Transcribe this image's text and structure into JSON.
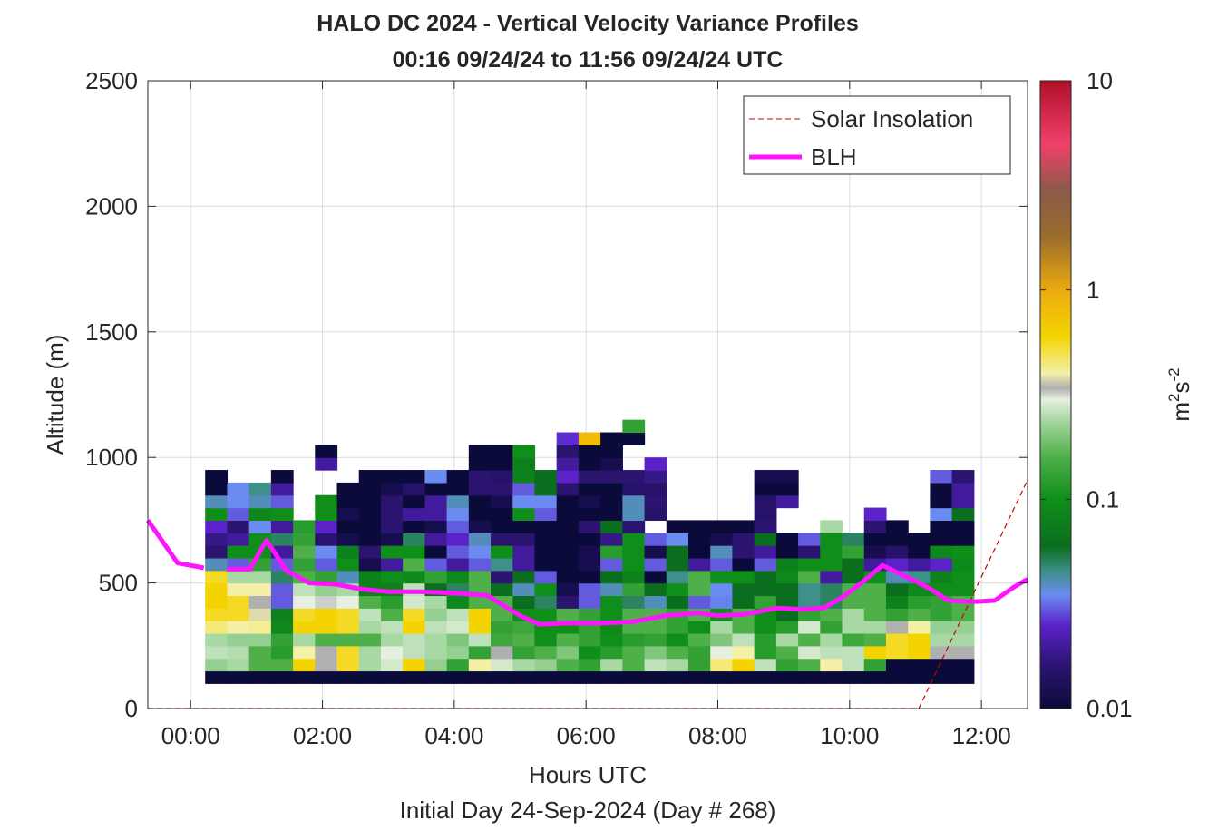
{
  "page": {
    "title_line1": "HALO DC 2024 - Vertical Velocity Variance Profiles",
    "title_line2": "00:16 09/24/24 to 11:56 09/24/24  UTC",
    "footer": "Initial Day 24-Sep-2024 (Day # 268)"
  },
  "chart_data": {
    "type": "heatmap",
    "title": "HALO DC 2024 - Vertical Velocity Variance Profiles",
    "subtitle": "00:16 09/24/24 to 11:56 09/24/24  UTC",
    "xlabel": "Hours UTC",
    "ylabel": "Altitude (m)",
    "footer": "Initial Day 24-Sep-2024 (Day # 268)",
    "xlim": [
      -0.65,
      12.7
    ],
    "ylim": [
      0,
      2500
    ],
    "x_ticks": [
      0,
      2,
      4,
      6,
      8,
      10,
      12
    ],
    "x_tick_labels": [
      "00:00",
      "02:00",
      "04:00",
      "06:00",
      "08:00",
      "10:00",
      "12:00"
    ],
    "y_ticks": [
      0,
      500,
      1000,
      1500,
      2000,
      2500
    ],
    "y_tick_labels": [
      "0",
      "500",
      "1000",
      "1500",
      "2000",
      "2500"
    ],
    "grid": true,
    "legend_placement": "top-right",
    "legend": [
      "Solar Insolation",
      "BLH"
    ],
    "colorbar": {
      "label_base": "m",
      "label_sup1": "2",
      "label_mid": "s",
      "label_sup2": "-2",
      "scale": "log",
      "range": [
        0.01,
        10
      ],
      "tick_values": [
        0.01,
        0.1,
        1,
        10
      ],
      "tick_labels": [
        "0.01",
        "0.1",
        "1",
        "10"
      ],
      "colormap": [
        {
          "v": 0.01,
          "c": "#0b0b3b"
        },
        {
          "v": 0.016,
          "c": "#2a1470"
        },
        {
          "v": 0.025,
          "c": "#5a22c8"
        },
        {
          "v": 0.035,
          "c": "#6a8cf0"
        },
        {
          "v": 0.045,
          "c": "#3f8f8a"
        },
        {
          "v": 0.06,
          "c": "#0a6e1e"
        },
        {
          "v": 0.1,
          "c": "#0f8f1a"
        },
        {
          "v": 0.16,
          "c": "#4fb04a"
        },
        {
          "v": 0.24,
          "c": "#a8d8a4"
        },
        {
          "v": 0.3,
          "c": "#e6efe0"
        },
        {
          "v": 0.34,
          "c": "#b0b0b0"
        },
        {
          "v": 0.4,
          "c": "#f4f0a8"
        },
        {
          "v": 0.6,
          "c": "#f4d400"
        },
        {
          "v": 1.0,
          "c": "#ecaa10"
        },
        {
          "v": 1.8,
          "c": "#9a6c2c"
        },
        {
          "v": 3.0,
          "c": "#8c5a4a"
        },
        {
          "v": 5.0,
          "c": "#f0406a"
        },
        {
          "v": 10.0,
          "c": "#b0102a"
        }
      ]
    },
    "blh_color": "#ff14ff",
    "solar_color": "#cc0000",
    "blh": {
      "name": "BLH",
      "x": [
        -0.65,
        -0.2,
        0.2,
        0.55,
        0.9,
        1.15,
        1.45,
        1.8,
        2.2,
        2.6,
        3.0,
        3.5,
        4.0,
        4.5,
        5.0,
        5.3,
        5.7,
        6.2,
        6.7,
        7.2,
        7.7,
        8.0,
        8.4,
        8.9,
        9.3,
        9.6,
        9.9,
        10.2,
        10.5,
        10.9,
        11.2,
        11.5,
        11.85,
        12.2,
        12.5,
        12.7
      ],
      "y": [
        750,
        580,
        560,
        555,
        555,
        670,
        550,
        500,
        495,
        475,
        465,
        465,
        460,
        450,
        370,
        335,
        340,
        340,
        345,
        370,
        380,
        370,
        375,
        400,
        395,
        400,
        445,
        505,
        570,
        520,
        480,
        430,
        425,
        430,
        485,
        515
      ],
      "gap_after_index": 2
    },
    "solar": {
      "name": "Solar Insolation",
      "x": [
        -0.65,
        11.05,
        12.7
      ],
      "y": [
        0,
        0,
        910
      ]
    },
    "heatmap_cells": {
      "x_start": 0.22,
      "x_step": 0.3333,
      "y_start": 100,
      "y_step": 50,
      "ncols": 35,
      "rows": [
        [
          0.01,
          0.01,
          0.01,
          0.01,
          0.01,
          0.01,
          0.01,
          0.01,
          0.01,
          0.01,
          0.01,
          0.01,
          0.01,
          0.01,
          0.01,
          0.01,
          0.01,
          0.01,
          0.01,
          0.01,
          0.01,
          0.01,
          0.01,
          0.01,
          0.01,
          0.01,
          0.01,
          0.01,
          0.01,
          0.01,
          0.01,
          0.01,
          0.01,
          0.01,
          0.01
        ],
        [
          0.22,
          0.24,
          0.16,
          0.16,
          0.6,
          0.34,
          0.55,
          0.24,
          0.28,
          0.6,
          0.22,
          0.13,
          0.4,
          0.28,
          0.24,
          0.22,
          0.16,
          0.13,
          0.24,
          0.16,
          0.26,
          0.24,
          0.13,
          0.45,
          0.6,
          0.26,
          0.13,
          0.16,
          0.4,
          0.26,
          0.13,
          0.01,
          0.01,
          0.01,
          0.01
        ],
        [
          0.26,
          0.25,
          0.16,
          0.12,
          0.4,
          0.34,
          0.55,
          0.24,
          0.3,
          0.26,
          0.24,
          0.22,
          0.13,
          0.34,
          0.13,
          0.16,
          0.2,
          0.1,
          0.12,
          0.16,
          0.2,
          0.16,
          0.13,
          0.3,
          0.4,
          0.12,
          0.16,
          0.28,
          0.26,
          0.26,
          0.6,
          0.55,
          0.6,
          0.34,
          0.34
        ],
        [
          0.24,
          0.22,
          0.22,
          0.13,
          0.24,
          0.16,
          0.16,
          0.16,
          0.24,
          0.26,
          0.24,
          0.2,
          0.26,
          0.14,
          0.16,
          0.1,
          0.16,
          0.13,
          0.1,
          0.12,
          0.13,
          0.1,
          0.16,
          0.2,
          0.26,
          0.12,
          0.24,
          0.16,
          0.24,
          0.14,
          0.16,
          0.55,
          0.6,
          0.24,
          0.24
        ],
        [
          0.45,
          0.4,
          0.42,
          0.09,
          0.6,
          0.6,
          0.55,
          0.24,
          0.26,
          0.6,
          0.26,
          0.28,
          0.6,
          0.13,
          0.14,
          0.1,
          0.1,
          0.13,
          0.09,
          0.16,
          0.16,
          0.13,
          0.1,
          0.24,
          0.16,
          0.1,
          0.12,
          0.28,
          0.13,
          0.24,
          0.24,
          0.34,
          0.4,
          0.22,
          0.22
        ],
        [
          0.55,
          0.55,
          0.38,
          0.08,
          0.55,
          0.6,
          0.55,
          0.26,
          0.16,
          0.55,
          0.22,
          0.26,
          0.6,
          0.16,
          0.1,
          0.1,
          0.16,
          0.13,
          0.1,
          0.16,
          0.16,
          0.13,
          0.16,
          0.1,
          0.16,
          0.1,
          0.06,
          0.13,
          0.16,
          0.24,
          0.16,
          0.13,
          0.16,
          0.13,
          0.16
        ],
        [
          0.6,
          0.55,
          0.34,
          0.03,
          0.3,
          0.32,
          0.3,
          0.16,
          0.12,
          0.28,
          0.24,
          0.09,
          0.16,
          0.16,
          0.06,
          0.05,
          0.016,
          0.03,
          0.1,
          0.05,
          0.04,
          0.06,
          0.03,
          0.034,
          0.06,
          0.13,
          0.06,
          0.045,
          0.05,
          0.16,
          0.16,
          0.08,
          0.12,
          0.13,
          0.16
        ],
        [
          0.6,
          0.4,
          0.4,
          0.03,
          0.26,
          0.22,
          0.24,
          0.08,
          0.08,
          0.26,
          0.06,
          0.05,
          0.16,
          0.06,
          0.04,
          0.1,
          0.012,
          0.03,
          0.04,
          0.13,
          0.06,
          0.1,
          0.16,
          0.035,
          0.06,
          0.06,
          0.06,
          0.045,
          0.05,
          0.16,
          0.16,
          0.06,
          0.09,
          0.1,
          0.1
        ],
        [
          0.55,
          0.24,
          0.24,
          0.05,
          0.16,
          0.13,
          0.04,
          0.08,
          0.1,
          0.09,
          0.13,
          0.09,
          0.16,
          0.016,
          0.06,
          0.03,
          0.01,
          0.01,
          0.06,
          0.08,
          0.01,
          0.045,
          0.16,
          0.1,
          0.1,
          0.06,
          0.09,
          0.16,
          0.02,
          0.06,
          0.1,
          0.04,
          0.045,
          0.08,
          0.1
        ],
        [
          0.04,
          0.03,
          0.13,
          0.03,
          0.13,
          0.03,
          0.1,
          0.012,
          0.02,
          0.16,
          0.03,
          0.02,
          0.03,
          0.045,
          0.02,
          0.01,
          0.01,
          0.012,
          0.03,
          0.1,
          0.03,
          0.06,
          0.02,
          0.03,
          0.01,
          0.03,
          0.08,
          0.1,
          0.1,
          0.06,
          0.02,
          0.025,
          0.02,
          0.025,
          0.09
        ],
        [
          0.016,
          0.1,
          0.1,
          0.02,
          0.16,
          0.035,
          0.08,
          0.016,
          0.1,
          0.1,
          0.01,
          0.03,
          0.035,
          0.1,
          0.02,
          0.01,
          0.01,
          0.012,
          0.12,
          0.1,
          0.012,
          0.06,
          0.01,
          0.04,
          0.016,
          0.02,
          0.01,
          0.016,
          0.1,
          0.13,
          0.012,
          0.015,
          0.01,
          0.09,
          0.1
        ],
        [
          0.018,
          0.02,
          0.1,
          0.05,
          0.13,
          0.016,
          0.012,
          0.01,
          0.012,
          0.05,
          0.02,
          0.025,
          0.04,
          0.016,
          0.016,
          0.01,
          0.01,
          0.01,
          0.018,
          0.1,
          0.03,
          0.035,
          0.01,
          0.012,
          0.016,
          0.06,
          0.01,
          0.03,
          0.1,
          0.05,
          0.01,
          0.01,
          0.01,
          0.01,
          0.01
        ],
        [
          0.025,
          0.016,
          0.035,
          0.02,
          0.12,
          0.025,
          0.01,
          0.01,
          0.016,
          0.01,
          0.012,
          0.03,
          0.012,
          0.01,
          0.01,
          0.01,
          0.01,
          0.016,
          0.06,
          0.016,
          null,
          0.01,
          0.01,
          0.01,
          0.01,
          0.016,
          null,
          null,
          0.24,
          null,
          0.016,
          0.01,
          null,
          0.01,
          0.01
        ],
        [
          0.1,
          0.03,
          0.09,
          0.1,
          null,
          0.1,
          0.012,
          0.01,
          0.016,
          0.02,
          0.02,
          0.035,
          0.01,
          0.01,
          0.1,
          0.03,
          0.01,
          0.01,
          0.01,
          0.04,
          0.015,
          null,
          null,
          null,
          null,
          0.015,
          null,
          null,
          null,
          null,
          0.025,
          null,
          null,
          0.035,
          0.06
        ],
        [
          0.04,
          0.035,
          0.04,
          0.03,
          null,
          0.1,
          0.01,
          0.01,
          0.016,
          0.01,
          0.02,
          0.04,
          0.01,
          0.012,
          0.035,
          0.035,
          0.01,
          0.012,
          0.01,
          0.04,
          0.016,
          null,
          null,
          null,
          null,
          0.015,
          0.02,
          null,
          null,
          null,
          null,
          null,
          null,
          0.01,
          0.02
        ],
        [
          0.01,
          0.035,
          0.045,
          0.02,
          null,
          null,
          0.01,
          0.01,
          0.012,
          0.015,
          0.01,
          0.01,
          0.016,
          0.016,
          0.03,
          0.06,
          0.016,
          0.01,
          0.01,
          0.015,
          0.015,
          null,
          null,
          null,
          null,
          0.01,
          0.01,
          null,
          null,
          null,
          null,
          null,
          null,
          0.01,
          0.02
        ],
        [
          0.01,
          null,
          null,
          0.01,
          null,
          null,
          null,
          0.01,
          0.01,
          0.01,
          0.035,
          0.01,
          0.016,
          0.015,
          0.08,
          0.06,
          0.025,
          0.016,
          0.016,
          0.016,
          0.018,
          null,
          null,
          null,
          null,
          0.012,
          0.012,
          null,
          null,
          null,
          null,
          null,
          null,
          0.03,
          0.016
        ],
        [
          null,
          null,
          null,
          null,
          null,
          0.02,
          null,
          null,
          null,
          null,
          null,
          null,
          0.01,
          0.01,
          0.08,
          null,
          0.02,
          0.01,
          0.012,
          null,
          0.025,
          null,
          null,
          null,
          null,
          null,
          null,
          null,
          null,
          null,
          null,
          null,
          null,
          null,
          null
        ],
        [
          null,
          null,
          null,
          null,
          null,
          0.01,
          null,
          null,
          null,
          null,
          null,
          null,
          0.01,
          0.01,
          0.1,
          null,
          0.016,
          0.01,
          0.01,
          null,
          null,
          null,
          null,
          null,
          null,
          null,
          null,
          null,
          null,
          null,
          null,
          null,
          null,
          null,
          null
        ],
        [
          null,
          null,
          null,
          null,
          null,
          null,
          null,
          null,
          null,
          null,
          null,
          null,
          null,
          null,
          null,
          null,
          0.026,
          0.8,
          0.01,
          0.01,
          null,
          null,
          null,
          null,
          null,
          null,
          null,
          null,
          null,
          null,
          null,
          null,
          null,
          null,
          null
        ],
        [
          null,
          null,
          null,
          null,
          null,
          null,
          null,
          null,
          null,
          null,
          null,
          null,
          null,
          null,
          null,
          null,
          null,
          null,
          null,
          0.13,
          null,
          null,
          null,
          null,
          null,
          null,
          null,
          null,
          null,
          null,
          null,
          null,
          null,
          null,
          null
        ]
      ]
    }
  }
}
